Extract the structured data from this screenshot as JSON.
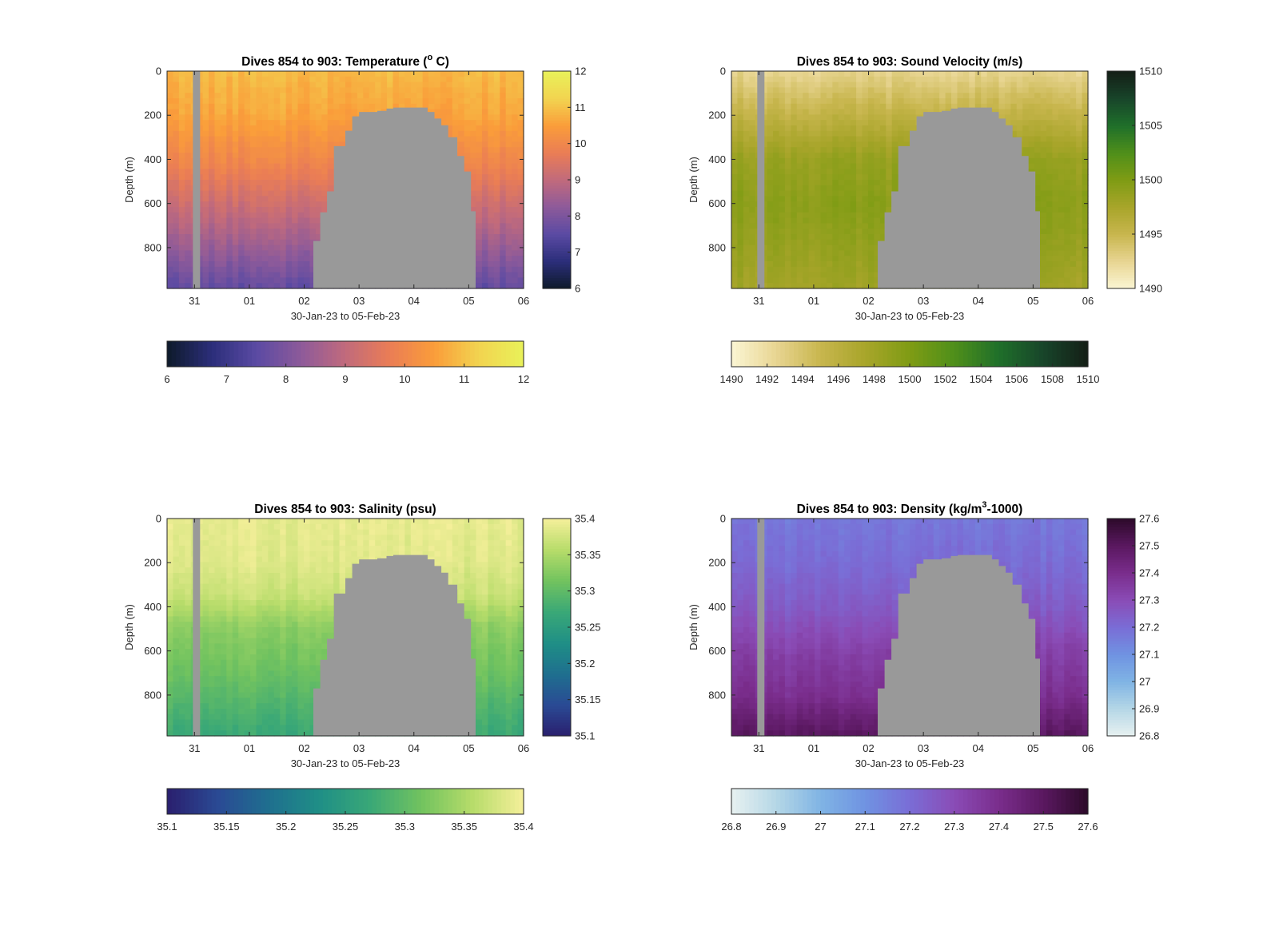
{
  "figure": {
    "background": "#ffffff",
    "mask_color": "#999999",
    "time_axis": {
      "start": "2023-01-30T12:00",
      "end": "2023-02-06T00:00",
      "ticks": [
        {
          "date": "2023-01-31",
          "label": "31"
        },
        {
          "date": "2023-02-01",
          "label": "01"
        },
        {
          "date": "2023-02-02",
          "label": "02"
        },
        {
          "date": "2023-02-03",
          "label": "03"
        },
        {
          "date": "2023-02-04",
          "label": "04"
        },
        {
          "date": "2023-02-05",
          "label": "05"
        },
        {
          "date": "2023-02-06",
          "label": "06"
        }
      ]
    },
    "no_data_profile": "2023-01-31",
    "bathymetry_mask_depth_m": [
      {
        "date": "2023-02-02T04:00",
        "depth": 770
      },
      {
        "date": "2023-02-02T07:00",
        "depth": 640
      },
      {
        "date": "2023-02-02T10:00",
        "depth": 545
      },
      {
        "date": "2023-02-02T13:00",
        "depth": 340
      },
      {
        "date": "2023-02-02T18:00",
        "depth": 270
      },
      {
        "date": "2023-02-02T21:00",
        "depth": 205
      },
      {
        "date": "2023-02-03T00:00",
        "depth": 185
      },
      {
        "date": "2023-02-03T08:00",
        "depth": 180
      },
      {
        "date": "2023-02-03T12:00",
        "depth": 170
      },
      {
        "date": "2023-02-03T15:00",
        "depth": 165
      },
      {
        "date": "2023-02-04T00:00",
        "depth": 165
      },
      {
        "date": "2023-02-04T06:00",
        "depth": 185
      },
      {
        "date": "2023-02-04T09:00",
        "depth": 215
      },
      {
        "date": "2023-02-04T12:00",
        "depth": 245
      },
      {
        "date": "2023-02-04T15:00",
        "depth": 300
      },
      {
        "date": "2023-02-04T19:00",
        "depth": 385
      },
      {
        "date": "2023-02-04T22:00",
        "depth": 455
      },
      {
        "date": "2023-02-05T01:00",
        "depth": 635
      },
      {
        "date": "2023-02-05T03:00",
        "depth": 985
      }
    ]
  },
  "chart_data": [
    {
      "id": "temperature",
      "type": "heatmap",
      "title": "Dives 854 to 903: Temperature (",
      "title_sup": "o",
      "title_tail": " C)",
      "xlabel": "30-Jan-23 to 05-Feb-23",
      "ylabel": "Depth (m)",
      "ylim": [
        0,
        985
      ],
      "yticks": [
        "0",
        "200",
        "400",
        "600",
        "800"
      ],
      "yticks_values": [
        0,
        200,
        400,
        600,
        800
      ],
      "depth_profile": [
        {
          "depth": 0,
          "value": 10.9
        },
        {
          "depth": 200,
          "value": 10.6
        },
        {
          "depth": 400,
          "value": 10.0
        },
        {
          "depth": 600,
          "value": 9.2
        },
        {
          "depth": 800,
          "value": 8.4
        },
        {
          "depth": 985,
          "value": 7.6
        }
      ],
      "colormap": [
        "#0d1a2a",
        "#2b2e7a",
        "#5a4aa3",
        "#8d5a9a",
        "#c16a7c",
        "#ea7d55",
        "#fa9d3a",
        "#f2d450",
        "#e9f159"
      ],
      "colorbar_right": {
        "min": 6,
        "max": 12,
        "ticks": [
          "6",
          "7",
          "8",
          "9",
          "10",
          "11",
          "12"
        ],
        "tick_values": [
          6,
          7,
          8,
          9,
          10,
          11,
          12
        ]
      },
      "colorbar_bottom": {
        "min": 6,
        "max": 12,
        "ticks": [
          "6",
          "7",
          "8",
          "9",
          "10",
          "11",
          "12"
        ],
        "tick_values": [
          6,
          7,
          8,
          9,
          10,
          11,
          12
        ]
      }
    },
    {
      "id": "sound-velocity",
      "type": "heatmap",
      "title": "Dives 854 to 903: Sound Velocity (m/s)",
      "xlabel": "30-Jan-23 to 05-Feb-23",
      "ylabel": "Depth (m)",
      "ylim": [
        0,
        985
      ],
      "yticks": [
        "0",
        "200",
        "400",
        "600",
        "800"
      ],
      "yticks_values": [
        0,
        200,
        400,
        600,
        800
      ],
      "depth_profile": [
        {
          "depth": 0,
          "value": 1492.5
        },
        {
          "depth": 200,
          "value": 1495.5
        },
        {
          "depth": 400,
          "value": 1498.5
        },
        {
          "depth": 600,
          "value": 1499.3
        },
        {
          "depth": 800,
          "value": 1498.6
        },
        {
          "depth": 985,
          "value": 1497.8
        }
      ],
      "colormap": [
        "#fbf6d4",
        "#e8d592",
        "#c8b64e",
        "#a8a52a",
        "#7f9c14",
        "#4f8f1a",
        "#1f6f2a",
        "#18452a",
        "#141e16"
      ],
      "colorbar_right": {
        "min": 1490,
        "max": 1510,
        "ticks": [
          "1490",
          "1495",
          "1500",
          "1505",
          "1510"
        ],
        "tick_values": [
          1490,
          1495,
          1500,
          1505,
          1510
        ]
      },
      "colorbar_bottom": {
        "min": 1490,
        "max": 1510,
        "ticks": [
          "1490",
          "1492",
          "1494",
          "1496",
          "1498",
          "1500",
          "1502",
          "1504",
          "1506",
          "1508",
          "1510"
        ],
        "tick_values": [
          1490,
          1492,
          1494,
          1496,
          1498,
          1500,
          1502,
          1504,
          1506,
          1508,
          1510
        ]
      }
    },
    {
      "id": "salinity",
      "type": "heatmap",
      "title": "Dives 854 to 903: Salinity (psu)",
      "xlabel": "30-Jan-23 to 05-Feb-23",
      "ylabel": "Depth (m)",
      "ylim": [
        0,
        985
      ],
      "yticks": [
        "0",
        "200",
        "400",
        "600",
        "800"
      ],
      "yticks_values": [
        0,
        200,
        400,
        600,
        800
      ],
      "depth_profile": [
        {
          "depth": 0,
          "value": 35.39
        },
        {
          "depth": 200,
          "value": 35.385
        },
        {
          "depth": 350,
          "value": 35.37
        },
        {
          "depth": 500,
          "value": 35.33
        },
        {
          "depth": 700,
          "value": 35.31
        },
        {
          "depth": 985,
          "value": 35.27
        }
      ],
      "colormap": [
        "#2a1f6e",
        "#2a4a94",
        "#1f6f8f",
        "#1f8f86",
        "#3aa877",
        "#72c35f",
        "#b7dc6a",
        "#f5ef9a"
      ],
      "colorbar_right": {
        "min": 35.1,
        "max": 35.4,
        "ticks": [
          "35.1",
          "35.15",
          "35.2",
          "35.25",
          "35.3",
          "35.35",
          "35.4"
        ],
        "tick_values": [
          35.1,
          35.15,
          35.2,
          35.25,
          35.3,
          35.35,
          35.4
        ]
      },
      "colorbar_bottom": {
        "min": 35.1,
        "max": 35.4,
        "ticks": [
          "35.1",
          "35.15",
          "35.2",
          "35.25",
          "35.3",
          "35.35",
          "35.4"
        ],
        "tick_values": [
          35.1,
          35.15,
          35.2,
          35.25,
          35.3,
          35.35,
          35.4
        ]
      }
    },
    {
      "id": "density",
      "type": "heatmap",
      "title": "Dives 854 to 903: Density (kg/m",
      "title_sup": "3",
      "title_tail": "-1000)",
      "xlabel": "30-Jan-23 to 05-Feb-23",
      "ylabel": "Depth (m)",
      "ylim": [
        0,
        985
      ],
      "yticks": [
        "0",
        "200",
        "400",
        "600",
        "800"
      ],
      "yticks_values": [
        0,
        200,
        400,
        600,
        800
      ],
      "depth_profile": [
        {
          "depth": 0,
          "value": 27.17
        },
        {
          "depth": 200,
          "value": 27.2
        },
        {
          "depth": 400,
          "value": 27.25
        },
        {
          "depth": 600,
          "value": 27.33
        },
        {
          "depth": 800,
          "value": 27.39
        },
        {
          "depth": 985,
          "value": 27.5
        }
      ],
      "colormap": [
        "#e8f1f1",
        "#b5d7e6",
        "#80b4e4",
        "#6f93e2",
        "#7a6dd6",
        "#8a4cb6",
        "#7a2d8c",
        "#5a1860",
        "#2d0a2a"
      ],
      "colorbar_right": {
        "min": 26.8,
        "max": 27.6,
        "ticks": [
          "26.8",
          "26.9",
          "27",
          "27.1",
          "27.2",
          "27.3",
          "27.4",
          "27.5",
          "27.6"
        ],
        "tick_values": [
          26.8,
          26.9,
          27.0,
          27.1,
          27.2,
          27.3,
          27.4,
          27.5,
          27.6
        ]
      },
      "colorbar_bottom": {
        "min": 26.8,
        "max": 27.6,
        "ticks": [
          "26.8",
          "26.9",
          "27",
          "27.1",
          "27.2",
          "27.3",
          "27.4",
          "27.5",
          "27.6"
        ],
        "tick_values": [
          26.8,
          26.9,
          27.0,
          27.1,
          27.2,
          27.3,
          27.4,
          27.5,
          27.6
        ]
      }
    }
  ]
}
